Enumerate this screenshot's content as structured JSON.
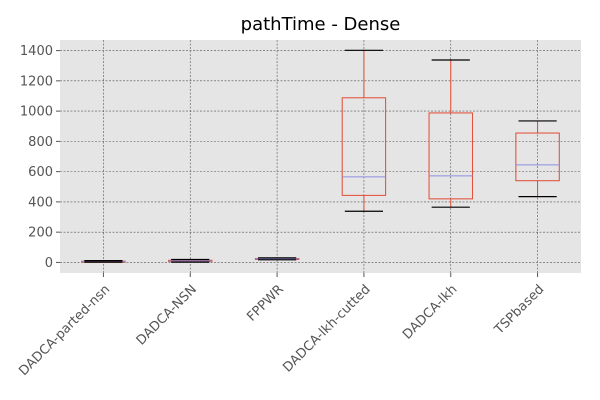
{
  "chart_data": {
    "type": "box",
    "title": "pathTime - Dense",
    "xlabel": "",
    "ylabel": "",
    "ylim": [
      -70,
      1470
    ],
    "yticks": [
      0,
      200,
      400,
      600,
      800,
      1000,
      1200,
      1400
    ],
    "grid": true,
    "categories": [
      "DADCA-parted-nsn",
      "DADCA-NSN",
      "FPPWR",
      "DADCA-lkh-cutted",
      "DADCA-lkh",
      "TSPbased"
    ],
    "boxes": [
      {
        "whisker_low": 2,
        "q1": 3,
        "median": 5,
        "q3": 8,
        "whisker_high": 12
      },
      {
        "whisker_low": 2,
        "q1": 7,
        "median": 10,
        "q3": 14,
        "whisker_high": 19
      },
      {
        "whisker_low": 17,
        "q1": 20,
        "median": 23,
        "q3": 26,
        "whisker_high": 30
      },
      {
        "whisker_low": 338,
        "q1": 443,
        "median": 565,
        "q3": 1088,
        "whisker_high": 1402
      },
      {
        "whisker_low": 365,
        "q1": 420,
        "median": 572,
        "q3": 988,
        "whisker_high": 1338
      },
      {
        "whisker_low": 435,
        "q1": 540,
        "median": 645,
        "q3": 855,
        "whisker_high": 935
      }
    ],
    "colors": {
      "box": "#e24a33",
      "median": "#8e8ee0",
      "cap": "#000000",
      "plot_background": "#e5e5e5",
      "grid": "#555555",
      "tick_label": "#555555"
    }
  }
}
